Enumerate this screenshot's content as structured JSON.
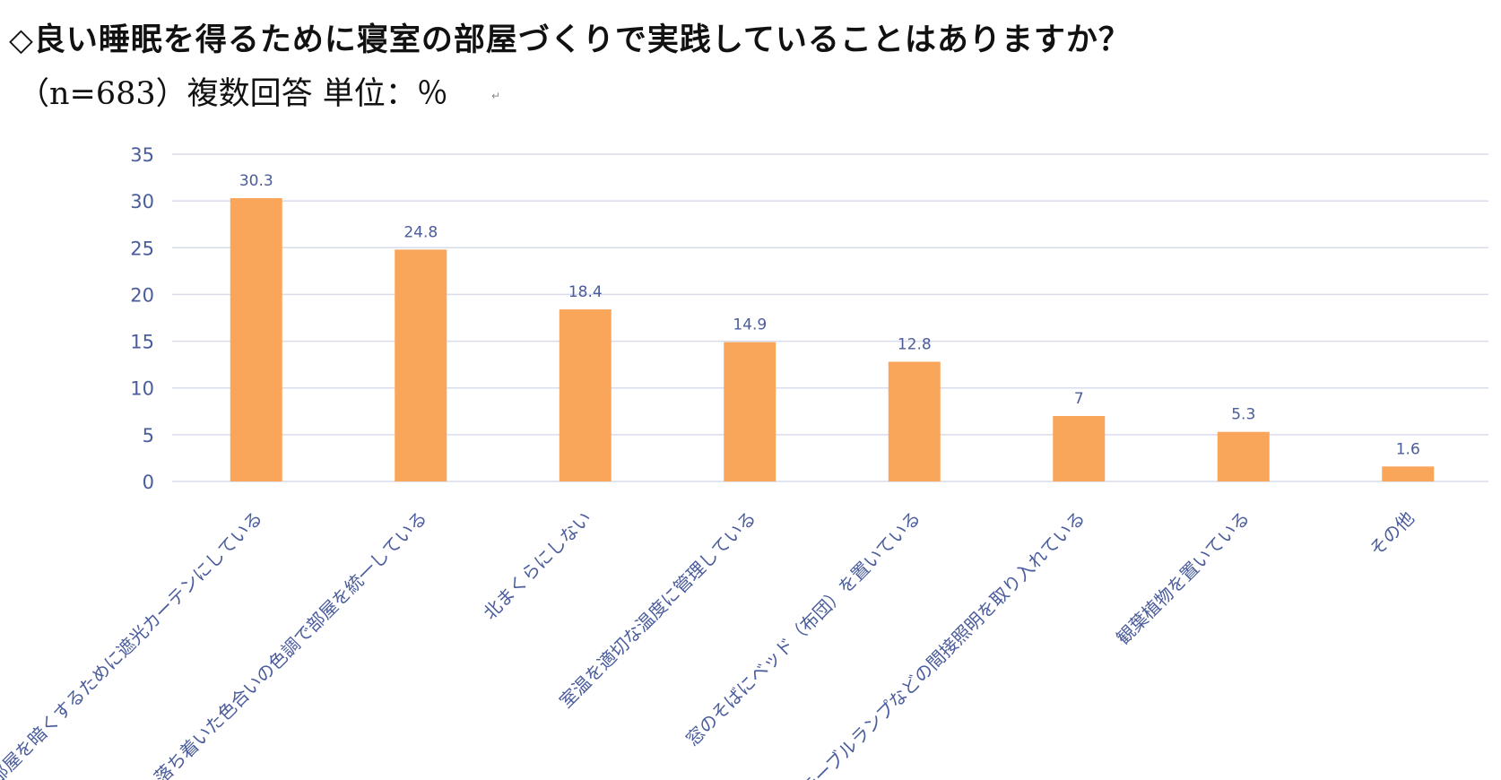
{
  "header": {
    "title": "◇良い睡眠を得るために寝室の部屋づくりで実践していることはありますか？",
    "subtitle": "（n=683）複数回答  単位：％",
    "return_mark": "↵"
  },
  "colors": {
    "bar": "#F9A55A",
    "axis_text": "#4A5C9C",
    "grid": "#D9DCEB"
  },
  "chart_data": {
    "type": "bar",
    "categories": [
      "部屋を暗くするために遮光カーテンにしている",
      "落ち着いた色合いの色調で部屋を統一している",
      "北まくらにしない",
      "室温を適切な温度に管理している",
      "窓のそばにベッド（布団）を置いている",
      "テーブルランプなどの間接照明を取り入れている",
      "観葉植物を置いている",
      "その他"
    ],
    "values": [
      30.3,
      24.8,
      18.4,
      14.9,
      12.8,
      7,
      5.3,
      1.6
    ],
    "value_labels": [
      "30.3",
      "24.8",
      "18.4",
      "14.9",
      "12.8",
      "7",
      "5.3",
      "1.6"
    ],
    "yticks": [
      0,
      5,
      10,
      15,
      20,
      25,
      30,
      35
    ],
    "ylim": [
      0,
      35
    ],
    "grid": true,
    "xlabel": "",
    "ylabel": ""
  }
}
